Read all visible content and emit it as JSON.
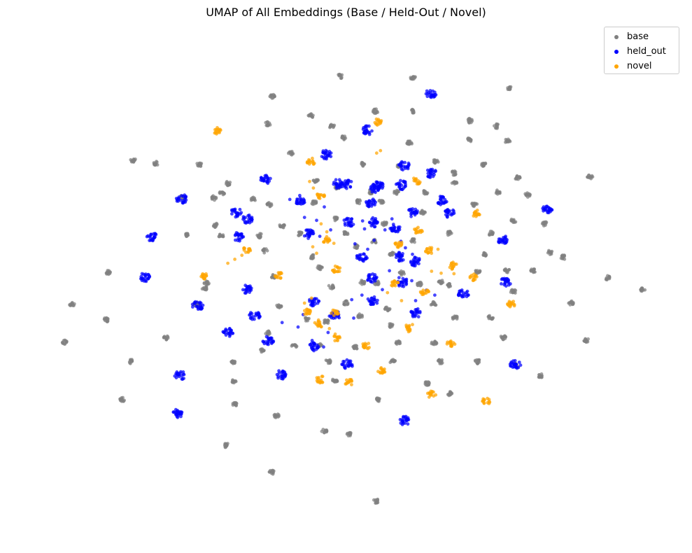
{
  "chart_data": {
    "type": "scatter",
    "title": "UMAP of All Embeddings (Base / Held-Out / Novel)",
    "xlabel": "",
    "ylabel": "",
    "axes_visible": false,
    "grid": false,
    "legend_position": "top-right",
    "xlim": [
      0,
      100
    ],
    "ylim": [
      0,
      100
    ],
    "series": [
      {
        "name": "base",
        "color": "#808080",
        "centers": [
          [
            49.1,
            91.0
          ],
          [
            60.5,
            90.7
          ],
          [
            75.7,
            88.6
          ],
          [
            38.5,
            87.0
          ],
          [
            54.6,
            84.0
          ],
          [
            60.6,
            84.0
          ],
          [
            44.5,
            83.1
          ],
          [
            37.8,
            81.5
          ],
          [
            47.8,
            81.0
          ],
          [
            69.4,
            82.1
          ],
          [
            73.6,
            81.0
          ],
          [
            49.7,
            78.7
          ],
          [
            59.9,
            77.6
          ],
          [
            69.2,
            78.2
          ],
          [
            75.3,
            78.0
          ],
          [
            41.4,
            75.6
          ],
          [
            16.7,
            74.2
          ],
          [
            20.3,
            73.5
          ],
          [
            27.0,
            73.3
          ],
          [
            52.6,
            73.3
          ],
          [
            58.4,
            73.0
          ],
          [
            64.1,
            74.0
          ],
          [
            66.9,
            71.6
          ],
          [
            71.5,
            73.3
          ],
          [
            88.2,
            70.8
          ],
          [
            76.9,
            70.6
          ],
          [
            31.5,
            69.5
          ],
          [
            45.3,
            70.0
          ],
          [
            67.0,
            69.5
          ],
          [
            73.8,
            67.8
          ],
          [
            24.5,
            66.8
          ],
          [
            30.6,
            67.6
          ],
          [
            35.5,
            66.3
          ],
          [
            48.6,
            68.8
          ],
          [
            53.9,
            67.8
          ],
          [
            57.9,
            67.7
          ],
          [
            62.4,
            67.7
          ],
          [
            78.4,
            67.2
          ],
          [
            29.3,
            66.6
          ],
          [
            38.0,
            65.3
          ],
          [
            45.0,
            65.7
          ],
          [
            52.0,
            65.9
          ],
          [
            55.5,
            65.8
          ],
          [
            62.0,
            63.8
          ],
          [
            70.1,
            65.3
          ],
          [
            29.6,
            61.1
          ],
          [
            40.0,
            61.0
          ],
          [
            48.3,
            62.5
          ],
          [
            56.0,
            61.5
          ],
          [
            76.2,
            62.0
          ],
          [
            81.1,
            61.4
          ],
          [
            24.9,
            59.2
          ],
          [
            30.4,
            59.0
          ],
          [
            36.5,
            59.0
          ],
          [
            42.7,
            59.5
          ],
          [
            50.0,
            59.5
          ],
          [
            54.4,
            57.9
          ],
          [
            60.5,
            58.0
          ],
          [
            66.2,
            59.5
          ],
          [
            72.7,
            59.5
          ],
          [
            37.3,
            56.0
          ],
          [
            44.8,
            54.8
          ],
          [
            51.6,
            56.9
          ],
          [
            57.1,
            55.5
          ],
          [
            71.6,
            55.3
          ],
          [
            82.0,
            55.7
          ],
          [
            84.0,
            54.7
          ],
          [
            12.7,
            51.6
          ],
          [
            28.2,
            49.6
          ],
          [
            38.6,
            50.8
          ],
          [
            45.9,
            52.6
          ],
          [
            52.6,
            49.7
          ],
          [
            58.7,
            51.5
          ],
          [
            64.9,
            49.8
          ],
          [
            70.6,
            51.8
          ],
          [
            75.2,
            52.0
          ],
          [
            79.3,
            52.0
          ],
          [
            90.9,
            50.6
          ],
          [
            96.4,
            48.2
          ],
          [
            27.9,
            48.5
          ],
          [
            47.7,
            48.8
          ],
          [
            54.8,
            49.5
          ],
          [
            61.5,
            49.3
          ],
          [
            66.1,
            49.1
          ],
          [
            7.1,
            45.3
          ],
          [
            26.6,
            45.2
          ],
          [
            39.6,
            45.0
          ],
          [
            50.0,
            45.5
          ],
          [
            56.5,
            44.3
          ],
          [
            63.7,
            45.3
          ],
          [
            76.2,
            47.8
          ],
          [
            85.2,
            45.5
          ],
          [
            12.5,
            42.2
          ],
          [
            37.8,
            39.5
          ],
          [
            43.8,
            42.3
          ],
          [
            46.9,
            41.8
          ],
          [
            52.2,
            42.9
          ],
          [
            56.9,
            41.1
          ],
          [
            67.1,
            42.5
          ],
          [
            72.7,
            42.7
          ],
          [
            21.9,
            38.6
          ],
          [
            36.8,
            35.9
          ],
          [
            41.9,
            36.9
          ],
          [
            45.9,
            37.0
          ],
          [
            51.4,
            36.6
          ],
          [
            58.1,
            37.5
          ],
          [
            63.8,
            37.5
          ],
          [
            74.6,
            38.6
          ],
          [
            87.6,
            38.0
          ],
          [
            5.9,
            37.7
          ],
          [
            16.4,
            33.8
          ],
          [
            32.4,
            33.8
          ],
          [
            47.2,
            33.8
          ],
          [
            57.3,
            33.8
          ],
          [
            64.8,
            33.8
          ],
          [
            70.6,
            33.8
          ],
          [
            76.7,
            33.0
          ],
          [
            80.5,
            30.9
          ],
          [
            32.5,
            29.8
          ],
          [
            48.3,
            30.0
          ],
          [
            62.7,
            29.3
          ],
          [
            15.0,
            26.2
          ],
          [
            32.6,
            25.3
          ],
          [
            55.2,
            26.2
          ],
          [
            66.3,
            27.3
          ],
          [
            39.1,
            22.9
          ],
          [
            46.6,
            19.9
          ],
          [
            50.5,
            19.3
          ],
          [
            31.2,
            17.0
          ],
          [
            38.4,
            11.6
          ],
          [
            54.7,
            5.8
          ]
        ]
      },
      {
        "name": "held_out",
        "color": "#0000ff",
        "centers": [
          [
            63.3,
            87.6
          ],
          [
            53.4,
            80.2
          ],
          [
            46.9,
            75.3
          ],
          [
            59.1,
            73.1
          ],
          [
            63.3,
            71.6
          ],
          [
            37.5,
            70.3
          ],
          [
            48.7,
            69.4
          ],
          [
            58.7,
            69.2
          ],
          [
            55.1,
            69.2
          ],
          [
            50.1,
            69.4
          ],
          [
            54.6,
            68.4
          ],
          [
            24.3,
            66.4
          ],
          [
            42.8,
            66.2
          ],
          [
            53.8,
            65.6
          ],
          [
            65.0,
            66.1
          ],
          [
            81.5,
            64.5
          ],
          [
            32.8,
            63.7
          ],
          [
            60.5,
            63.6
          ],
          [
            66.2,
            63.5
          ],
          [
            34.6,
            62.3
          ],
          [
            50.4,
            61.7
          ],
          [
            54.3,
            61.7
          ],
          [
            19.7,
            58.8
          ],
          [
            33.1,
            58.8
          ],
          [
            44.2,
            59.5
          ],
          [
            57.6,
            60.5
          ],
          [
            74.6,
            58.2
          ],
          [
            58.4,
            54.8
          ],
          [
            52.5,
            54.7
          ],
          [
            60.8,
            53.9
          ],
          [
            18.6,
            50.7
          ],
          [
            54.1,
            50.5
          ],
          [
            58.9,
            49.6
          ],
          [
            75.0,
            49.7
          ],
          [
            34.4,
            48.3
          ],
          [
            68.4,
            47.4
          ],
          [
            26.8,
            45.0
          ],
          [
            54.1,
            45.9
          ],
          [
            61.0,
            43.5
          ],
          [
            35.7,
            43.0
          ],
          [
            45.0,
            45.7
          ],
          [
            48.4,
            43.1
          ],
          [
            31.6,
            39.6
          ],
          [
            37.8,
            38.0
          ],
          [
            45.0,
            36.7
          ],
          [
            50.2,
            33.2
          ],
          [
            76.5,
            33.1
          ],
          [
            24.0,
            31.0
          ],
          [
            39.8,
            31.1
          ],
          [
            23.8,
            23.4
          ],
          [
            59.3,
            21.9
          ]
        ],
        "scattered_points": [
          [
            41.2,
            66.3
          ],
          [
            43.5,
            62.7
          ],
          [
            45.4,
            62.1
          ],
          [
            44.1,
            58.5
          ],
          [
            45.9,
            58.9
          ],
          [
            46.6,
            64.8
          ],
          [
            47.6,
            60.2
          ],
          [
            51.4,
            57.4
          ],
          [
            52.9,
            60.4
          ],
          [
            57.2,
            62.4
          ],
          [
            58.6,
            57.9
          ],
          [
            59.3,
            56.6
          ],
          [
            60.4,
            55.3
          ],
          [
            61.4,
            54.1
          ],
          [
            56.8,
            52.0
          ],
          [
            58.3,
            50.6
          ],
          [
            60.3,
            50.0
          ],
          [
            60.9,
            46.0
          ],
          [
            62.6,
            48.1
          ],
          [
            63.9,
            47.1
          ],
          [
            55.7,
            48.2
          ],
          [
            52.5,
            47.1
          ],
          [
            50.9,
            46.2
          ],
          [
            51.2,
            42.5
          ],
          [
            47.4,
            42.9
          ],
          [
            47.2,
            39.6
          ],
          [
            46.5,
            36.7
          ],
          [
            44.7,
            38.0
          ],
          [
            43.3,
            43.2
          ],
          [
            42.5,
            40.7
          ],
          [
            40.0,
            41.6
          ],
          [
            56.1,
            60.2
          ],
          [
            54.4,
            58.1
          ],
          [
            52.6,
            62.0
          ],
          [
            53.4,
            56.3
          ]
        ]
      },
      {
        "name": "novel",
        "color": "#ffa500",
        "centers": [
          [
            29.8,
            80.1
          ],
          [
            55.0,
            81.8
          ],
          [
            44.5,
            73.9
          ],
          [
            46.0,
            67.2
          ],
          [
            70.4,
            63.5
          ],
          [
            61.3,
            60.0
          ],
          [
            46.9,
            58.3
          ],
          [
            63.1,
            56.0
          ],
          [
            34.5,
            56.2
          ],
          [
            58.3,
            57.2
          ],
          [
            27.7,
            51.0
          ],
          [
            39.4,
            51.1
          ],
          [
            48.5,
            52.3
          ],
          [
            66.7,
            53.0
          ],
          [
            69.9,
            50.7
          ],
          [
            57.6,
            49.4
          ],
          [
            62.3,
            47.7
          ],
          [
            43.9,
            43.9
          ],
          [
            48.2,
            43.5
          ],
          [
            75.9,
            45.4
          ],
          [
            45.6,
            41.1
          ],
          [
            59.6,
            40.4
          ],
          [
            48.4,
            38.6
          ],
          [
            53.1,
            36.9
          ],
          [
            66.4,
            37.3
          ],
          [
            55.6,
            32.1
          ],
          [
            46.0,
            30.2
          ],
          [
            50.4,
            29.6
          ],
          [
            63.4,
            27.2
          ],
          [
            72.0,
            25.9
          ],
          [
            61.0,
            70.0
          ]
        ],
        "scattered_points": [
          [
            31.5,
            53.5
          ],
          [
            32.6,
            54.3
          ],
          [
            33.7,
            55.1
          ],
          [
            44.3,
            69.9
          ],
          [
            44.9,
            68.6
          ],
          [
            46.1,
            61.4
          ],
          [
            47.0,
            59.8
          ],
          [
            48.1,
            57.5
          ],
          [
            44.8,
            56.8
          ],
          [
            45.4,
            55.5
          ],
          [
            66.9,
            51.4
          ],
          [
            64.9,
            51.5
          ],
          [
            63.4,
            51.9
          ],
          [
            43.5,
            45.5
          ],
          [
            44.6,
            46.5
          ],
          [
            60.4,
            41.2
          ],
          [
            58.7,
            46.0
          ],
          [
            56.5,
            47.6
          ],
          [
            45.7,
            42.1
          ],
          [
            47.4,
            40.4
          ],
          [
            64.4,
            56.3
          ],
          [
            55.4,
            76.1
          ],
          [
            54.8,
            75.6
          ]
        ]
      }
    ]
  }
}
